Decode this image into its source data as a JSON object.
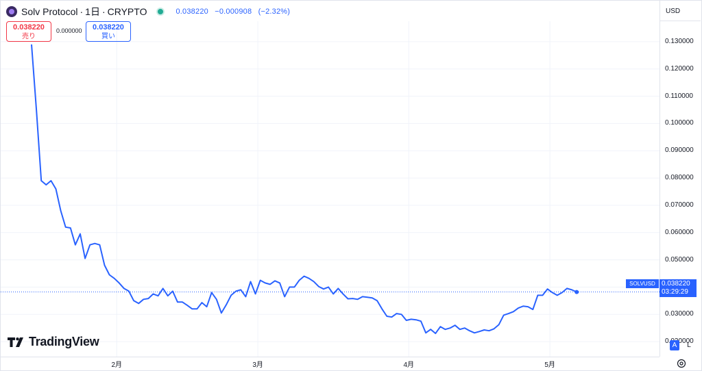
{
  "header": {
    "symbol_title": "Solv Protocol",
    "separator": "·",
    "interval": "1日",
    "exchange": "CRYPTO",
    "last": "0.038220",
    "change": "−0.000908",
    "change_pct": "(−2.32%)"
  },
  "trade": {
    "sell_price": "0.038220",
    "sell_label": "売り",
    "spread": "0.000000",
    "buy_price": "0.038220",
    "buy_label": "買い"
  },
  "price_axis": {
    "currency": "USD",
    "last_tag_price": "0.038220",
    "last_tag_countdown": "03:29:29",
    "symbol_tag": "SOLVUSD",
    "auto_label": "A",
    "log_label": "L"
  },
  "brand": {
    "name": "TradingView"
  },
  "colors": {
    "line": "#2962ff",
    "sell": "#f23645",
    "buy": "#2962ff",
    "status": "#22ab94",
    "grid": "#f0f3fa"
  },
  "chart_data": {
    "type": "line",
    "series": [
      {
        "values": [
          0.129,
          0.105,
          0.079,
          0.0775,
          0.079,
          0.076,
          0.068,
          0.062,
          0.0617,
          0.0555,
          0.0595,
          0.0505,
          0.0555,
          0.056,
          0.0555,
          0.048,
          0.0445,
          0.0432,
          0.0415,
          0.0395,
          0.0385,
          0.035,
          0.034,
          0.0355,
          0.0358,
          0.0375,
          0.0368,
          0.0395,
          0.0368,
          0.0385,
          0.0345,
          0.0345,
          0.0333,
          0.032,
          0.032,
          0.0343,
          0.0328,
          0.038,
          0.0355,
          0.0305,
          0.0335,
          0.037,
          0.0385,
          0.039,
          0.0365,
          0.042,
          0.0375,
          0.0425,
          0.0415,
          0.041,
          0.0423,
          0.0415,
          0.0365,
          0.04,
          0.04,
          0.0425,
          0.044,
          0.0432,
          0.042,
          0.0402,
          0.0393,
          0.04,
          0.0375,
          0.0395,
          0.0375,
          0.0357,
          0.0358,
          0.0355,
          0.0365,
          0.0363,
          0.036,
          0.035,
          0.032,
          0.0293,
          0.029,
          0.0303,
          0.03,
          0.0278,
          0.0282,
          0.028,
          0.0275,
          0.0232,
          0.0245,
          0.023,
          0.0255,
          0.0245,
          0.025,
          0.026,
          0.0245,
          0.025,
          0.024,
          0.0232,
          0.0237,
          0.0243,
          0.024,
          0.0247,
          0.0262,
          0.0297,
          0.0303,
          0.031,
          0.0323,
          0.033,
          0.0328,
          0.0318,
          0.037,
          0.037,
          0.0393,
          0.038,
          0.037,
          0.038,
          0.0395,
          0.039,
          0.0382
        ]
      }
    ],
    "ylim": [
      0.0145,
      0.1375
    ],
    "yticks": [
      "0.130000",
      "0.120000",
      "0.110000",
      "0.100000",
      "0.090000",
      "0.080000",
      "0.070000",
      "0.060000",
      "0.050000",
      "0.040000",
      "0.030000",
      "0.020000"
    ],
    "ytick_values": [
      0.13,
      0.12,
      0.11,
      0.1,
      0.09,
      0.08,
      0.07,
      0.06,
      0.05,
      0.04,
      0.03,
      0.02
    ],
    "xticks": [
      "2月",
      "3月",
      "4月",
      "5月"
    ],
    "xtick_index": [
      17.5,
      46.5,
      77.5,
      106.5
    ],
    "last_value": 0.03822,
    "grid": true,
    "legend": "none"
  }
}
